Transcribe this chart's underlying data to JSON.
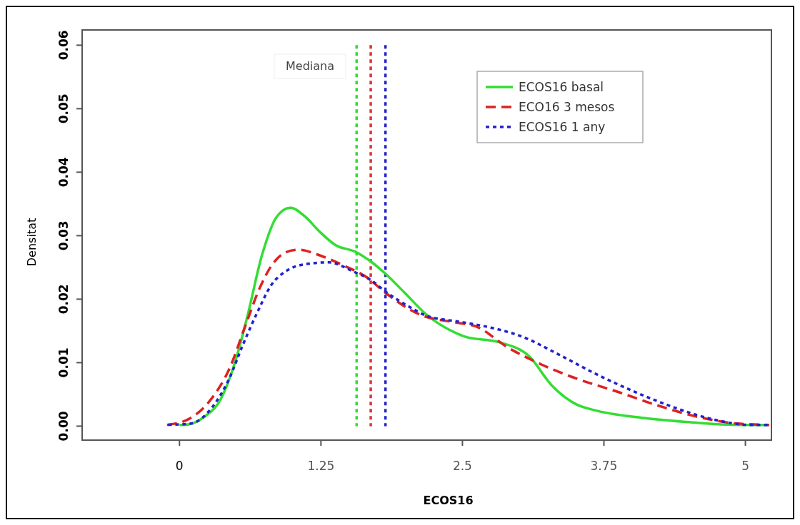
{
  "chart_data": {
    "type": "line",
    "xlabel": "ECOS16",
    "ylabel": "Densitat",
    "annotations": [
      "Mediana"
    ],
    "xlim": [
      -0.86,
      5.23
    ],
    "ylim": [
      -0.0022,
      0.0624
    ],
    "xticks": [
      0,
      1.25,
      2.5,
      3.75,
      5
    ],
    "yticks": [
      {
        "value": 0,
        "label": "0.00"
      },
      {
        "value": 0.01,
        "label": "0.01"
      },
      {
        "value": 0.02,
        "label": "0.02"
      },
      {
        "value": 0.03,
        "label": "0.03"
      },
      {
        "value": 0.04,
        "label": "0.04"
      },
      {
        "value": 0.05,
        "label": "0.05"
      },
      {
        "value": 0.06,
        "label": "0.06"
      }
    ],
    "legend": "top right",
    "grid": false,
    "ref_lines": [
      {
        "axis": "x",
        "value": 1.565,
        "color": "#33dd33",
        "line_style": "dotted"
      },
      {
        "axis": "x",
        "value": 1.69,
        "color": "#dd3333",
        "line_style": "dotted"
      },
      {
        "axis": "x",
        "value": 1.82,
        "color": "#2222cc",
        "line_style": "dotted"
      }
    ],
    "series": [
      {
        "name": "ECOS16 basal",
        "color": "#33dd33",
        "line_style": "solid",
        "x": [
          0.0,
          0.04,
          0.23,
          0.35,
          0.5,
          0.6,
          0.73,
          0.86,
          0.98,
          1.11,
          1.24,
          1.38,
          1.55,
          1.7,
          1.82,
          1.99,
          2.18,
          2.45,
          2.52,
          2.83,
          3.09,
          3.29,
          3.51,
          3.67,
          4.09,
          4.52,
          4.93,
          5.21
        ],
        "values": [
          0.0002,
          0.0002,
          0.0016,
          0.0038,
          0.0106,
          0.0173,
          0.027,
          0.033,
          0.0344,
          0.033,
          0.0306,
          0.0285,
          0.0275,
          0.0258,
          0.024,
          0.021,
          0.0176,
          0.0146,
          0.0141,
          0.0132,
          0.011,
          0.0064,
          0.0034,
          0.0025,
          0.0013,
          0.0006,
          0.0002,
          0.0002
        ]
      },
      {
        "name": "ECO16 3 mesos",
        "color": "#dd2222",
        "line_style": "dashed",
        "x": [
          -0.11,
          0.08,
          0.29,
          0.44,
          0.58,
          0.71,
          0.81,
          0.94,
          1.05,
          1.24,
          1.45,
          1.65,
          1.82,
          2.12,
          2.45,
          2.62,
          2.9,
          3.15,
          3.46,
          3.89,
          4.2,
          4.62,
          4.93,
          5.21
        ],
        "values": [
          0.0002,
          0.0011,
          0.0045,
          0.009,
          0.0157,
          0.0218,
          0.0252,
          0.0274,
          0.0278,
          0.0269,
          0.0253,
          0.0235,
          0.021,
          0.0176,
          0.0163,
          0.0157,
          0.0124,
          0.0101,
          0.0078,
          0.0053,
          0.0034,
          0.0013,
          0.0004,
          0.0002
        ]
      },
      {
        "name": "ECOS16 1 any",
        "color": "#2222cc",
        "line_style": "dotted",
        "x": [
          -0.1,
          0.1,
          0.29,
          0.44,
          0.56,
          0.69,
          0.81,
          0.94,
          1.11,
          1.32,
          1.53,
          1.7,
          1.82,
          2.03,
          2.18,
          2.45,
          2.62,
          3.04,
          3.36,
          3.67,
          4.09,
          4.41,
          4.73,
          5.04,
          5.21
        ],
        "values": [
          0.0002,
          0.0004,
          0.003,
          0.0075,
          0.0128,
          0.018,
          0.0222,
          0.0244,
          0.0255,
          0.0258,
          0.0244,
          0.0229,
          0.0212,
          0.0188,
          0.0174,
          0.0165,
          0.016,
          0.014,
          0.0112,
          0.0083,
          0.0049,
          0.0027,
          0.001,
          0.0002,
          0.0002
        ]
      }
    ]
  }
}
